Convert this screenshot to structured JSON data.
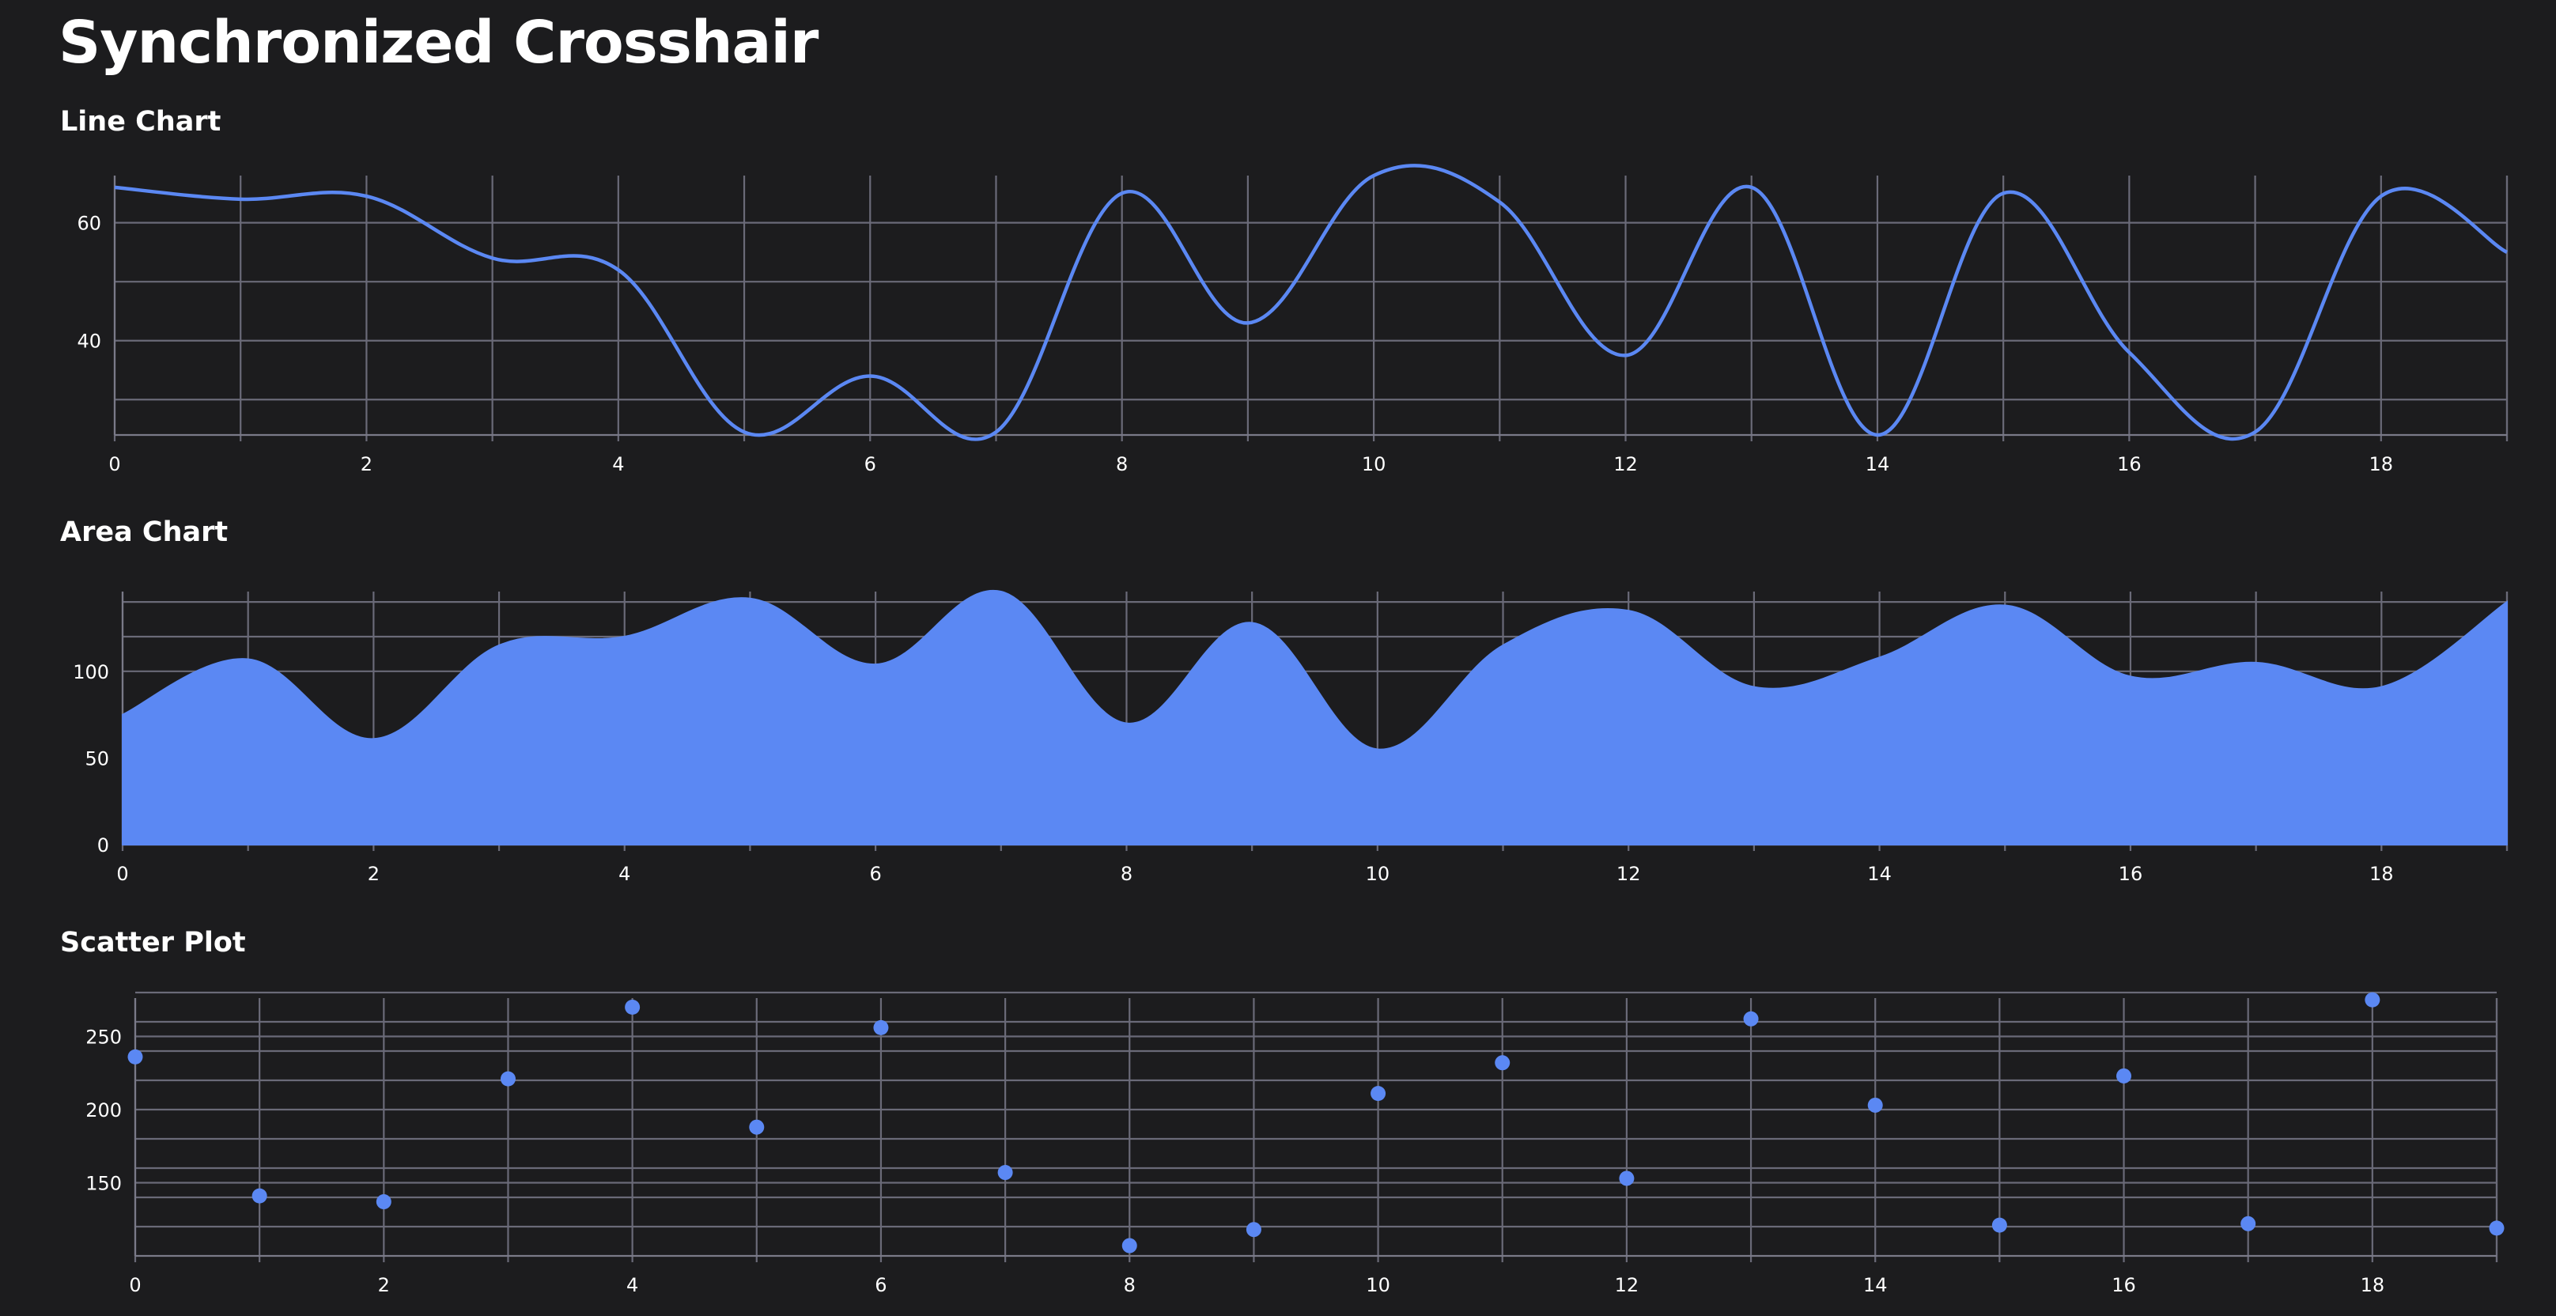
{
  "page": {
    "title": "Synchronized Crosshair"
  },
  "colors": {
    "background": "#1c1c1e",
    "accent": "#5b88f3",
    "grid": "#6a6a78",
    "text": "#ffffff"
  },
  "chart_data": [
    {
      "id": "line",
      "type": "line",
      "title": "Line Chart",
      "x": [
        0,
        1,
        2,
        3,
        4,
        5,
        6,
        7,
        8,
        9,
        10,
        11,
        12,
        13,
        14,
        15,
        16,
        17,
        18,
        19
      ],
      "series": [
        {
          "values": [
            66,
            64,
            64.5,
            54,
            52,
            24.5,
            34,
            24.5,
            65,
            43,
            68,
            63.5,
            37.5,
            66,
            24,
            65,
            38,
            24.5,
            64.5,
            55
          ]
        }
      ],
      "xlim": [
        0,
        19
      ],
      "ylim": [
        24,
        68
      ],
      "xticks": [
        0,
        2,
        4,
        6,
        8,
        10,
        12,
        14,
        16,
        18
      ],
      "yticks": [
        40,
        60
      ],
      "ygrid": [
        30,
        40,
        50,
        60
      ],
      "grid": true
    },
    {
      "id": "area",
      "type": "area",
      "title": "Area Chart",
      "x": [
        0,
        1,
        2,
        3,
        4,
        5,
        6,
        7,
        8,
        9,
        10,
        11,
        12,
        13,
        14,
        15,
        16,
        17,
        18,
        19
      ],
      "series": [
        {
          "values": [
            75,
            107,
            61,
            115,
            120,
            142,
            104,
            146,
            70,
            128,
            55,
            115,
            135,
            91,
            108,
            138,
            97,
            105,
            91,
            140
          ]
        }
      ],
      "xlim": [
        0,
        19
      ],
      "ylim": [
        0,
        146
      ],
      "xticks": [
        0,
        2,
        4,
        6,
        8,
        10,
        12,
        14,
        16,
        18
      ],
      "yticks": [
        0,
        50,
        100
      ],
      "ygrid": [
        120,
        140
      ],
      "grid": true
    },
    {
      "id": "scatter",
      "type": "scatter",
      "title": "Scatter Plot",
      "x": [
        0,
        1,
        2,
        3,
        4,
        5,
        6,
        7,
        8,
        9,
        10,
        11,
        12,
        13,
        14,
        15,
        16,
        17,
        18,
        19
      ],
      "series": [
        {
          "values": [
            236,
            141,
            137,
            221,
            270,
            188,
            256,
            157,
            107,
            118,
            211,
            232,
            153,
            262,
            203,
            121,
            223,
            122,
            275,
            119
          ]
        }
      ],
      "xlim": [
        0,
        19
      ],
      "ylim": [
        100,
        280
      ],
      "xticks": [
        0,
        2,
        4,
        6,
        8,
        10,
        12,
        14,
        16,
        18
      ],
      "yticks": [
        150,
        200,
        250
      ],
      "ygrid": [
        120,
        140,
        160,
        180,
        200,
        220,
        240,
        260,
        280
      ],
      "grid": true
    }
  ]
}
